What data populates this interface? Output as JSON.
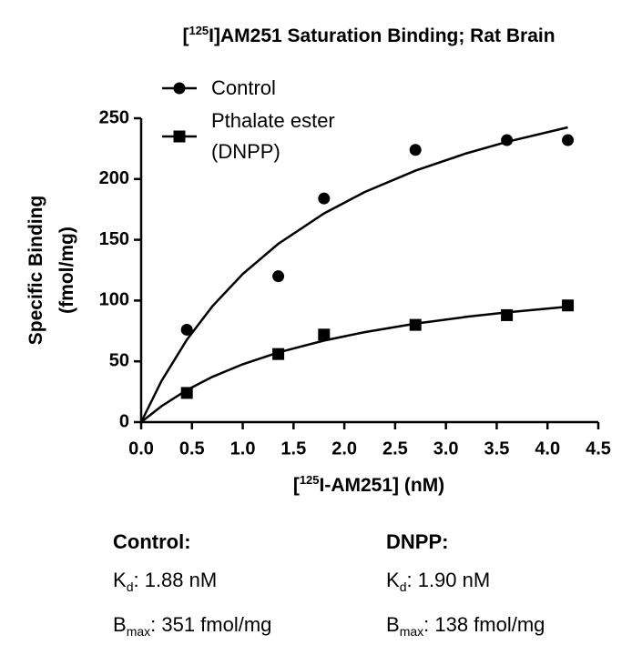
{
  "chart_data": {
    "type": "scatter",
    "title": {
      "pre": "[",
      "sup": "125",
      "post": "I]AM251 Saturation Binding; Rat Brain"
    },
    "x_label": {
      "pre": "[",
      "sup": "125",
      "post": "I-AM251] (nM)"
    },
    "y_label": [
      "Specific Binding",
      "(fmol/mg)"
    ],
    "xlim": [
      0,
      4.5
    ],
    "xticks": [
      {
        "value": 0,
        "label": "0.0"
      },
      0.5,
      {
        "value": 1,
        "label": "1.0"
      },
      1.5,
      {
        "value": 2,
        "label": "2.0"
      },
      2.5,
      {
        "value": 3,
        "label": "3.0"
      },
      3.5,
      {
        "value": 4,
        "label": "4.0"
      },
      4.5
    ],
    "ylim": [
      0,
      250
    ],
    "yticks": [
      0,
      50,
      100,
      150,
      200,
      250
    ],
    "legend": "top-left",
    "series": [
      {
        "name": "Control",
        "color": "#000000",
        "marker": "circle",
        "x": [
          0.45,
          1.35,
          1.8,
          2.7,
          3.6,
          4.2
        ],
        "values": [
          76,
          120,
          184,
          224,
          232,
          232
        ],
        "fit_x": [
          0,
          0.2,
          0.45,
          0.7,
          1,
          1.35,
          1.8,
          2.2,
          2.7,
          3.2,
          3.6,
          4.2
        ],
        "fit_values": [
          0,
          33.8,
          67.8,
          95.2,
          121.9,
          146.7,
          171.7,
          189.3,
          206.9,
          221.1,
          230.6,
          242.5
        ]
      },
      {
        "name": "Pthalate ester (DNPP)",
        "color": "#000000",
        "marker": "square",
        "x": [
          0.45,
          1.35,
          1.8,
          2.7,
          3.6,
          4.2
        ],
        "values": [
          24,
          56,
          72,
          80,
          88,
          96
        ],
        "fit_x": [
          0,
          0.2,
          0.45,
          0.7,
          1,
          1.35,
          1.8,
          2.2,
          2.7,
          3.2,
          3.6,
          4.2
        ],
        "fit_values": [
          0,
          13.1,
          26.4,
          37.2,
          47.6,
          57.3,
          67.1,
          74.0,
          81.0,
          86.6,
          90.3,
          95.0
        ]
      }
    ],
    "annotations": [
      {
        "heading": "Control:",
        "kd": {
          "sym": "K",
          "sub": "d",
          "text": ": 1.88 nM"
        },
        "bmax": {
          "sym": "B",
          "sub": "max",
          "text": ": 351 fmol/mg"
        }
      },
      {
        "heading": "DNPP:",
        "kd": {
          "sym": "K",
          "sub": "d",
          "text": ": 1.90 nM"
        },
        "bmax": {
          "sym": "B",
          "sub": "max",
          "text": ": 138 fmol/mg"
        }
      }
    ]
  }
}
